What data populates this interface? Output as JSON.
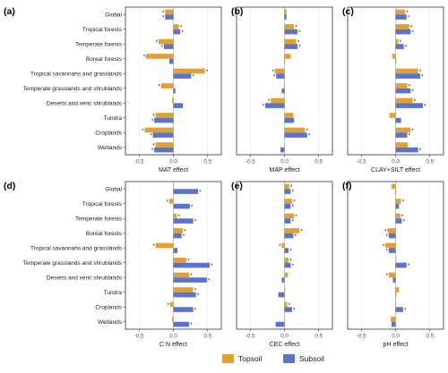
{
  "colors": {
    "topsoil": "#E3A02F",
    "subsoil": "#5B73C9",
    "panel_border": "#333333",
    "grid": "#E6E6E6",
    "zero_line": "#B3B3B3"
  },
  "legend": {
    "topsoil": "Topsoil",
    "subsoil": "Subsoil"
  },
  "chart_data": [
    {
      "type": "bar",
      "orientation": "horizontal",
      "panel": "(a)",
      "xlabel": "MAT effect",
      "xlim": [
        -0.7,
        0.7
      ],
      "xticks": [
        "-0.5",
        "0.0",
        "0.5"
      ],
      "categories": [
        "Global",
        "Tropical forests",
        "Temperate forests",
        "Boreal forests",
        "Tropical savannahs and grasslands",
        "Temperate grasslands and shrublands",
        "Deserts and xeric shrublands",
        "Tundra",
        "Croplands",
        "Wetlands"
      ],
      "series": [
        {
          "name": "Topsoil",
          "values": [
            -0.12,
            0.08,
            -0.22,
            -0.4,
            0.46,
            -0.18,
            -0.02,
            -0.26,
            -0.42,
            -0.26
          ],
          "significant": [
            true,
            true,
            true,
            true,
            true,
            true,
            false,
            true,
            true,
            true
          ]
        },
        {
          "name": "Subsoil",
          "values": [
            -0.12,
            0.1,
            -0.14,
            -0.06,
            0.26,
            0.03,
            0.14,
            -0.28,
            -0.3,
            -0.28
          ],
          "significant": [
            true,
            true,
            true,
            false,
            true,
            false,
            false,
            true,
            true,
            true
          ]
        }
      ]
    },
    {
      "type": "bar",
      "orientation": "horizontal",
      "panel": "(b)",
      "xlabel": "MAP effect",
      "xlim": [
        -0.7,
        0.7
      ],
      "xticks": [
        "-0.5",
        "0.0",
        "0.5"
      ],
      "categories": [
        "Global",
        "Tropical forests",
        "Temperate forests",
        "Boreal forests",
        "Tropical savannahs and grasslands",
        "Temperate grasslands and shrublands",
        "Deserts and xeric shrublands",
        "Tundra",
        "Croplands",
        "Wetlands"
      ],
      "series": [
        {
          "name": "Topsoil",
          "values": [
            0.03,
            0.14,
            0.17,
            0.09,
            -0.14,
            -0.01,
            -0.2,
            0.13,
            0.3,
            0.0
          ],
          "significant": [
            false,
            true,
            true,
            false,
            true,
            false,
            true,
            false,
            true,
            false
          ]
        },
        {
          "name": "Subsoil",
          "values": [
            0.03,
            0.19,
            0.19,
            0.0,
            -0.12,
            -0.04,
            -0.28,
            0.14,
            0.33,
            -0.06
          ],
          "significant": [
            false,
            true,
            true,
            false,
            true,
            false,
            true,
            false,
            true,
            false
          ]
        }
      ]
    },
    {
      "type": "bar",
      "orientation": "horizontal",
      "panel": "(c)",
      "xlabel": "CLAY+SILT effect",
      "xlim": [
        -0.7,
        0.7
      ],
      "xticks": [
        "-0.5",
        "0.0",
        "0.5"
      ],
      "categories": [
        "Global",
        "Tropical forests",
        "Temperate forests",
        "Boreal forests",
        "Tropical savannahs and grasslands",
        "Temperate grasslands and shrublands",
        "Deserts and xeric shrublands",
        "Tundra",
        "Croplands",
        "Wetlands"
      ],
      "series": [
        {
          "name": "Topsoil",
          "values": [
            0.14,
            0.2,
            0.04,
            -0.05,
            0.33,
            0.17,
            0.25,
            -0.09,
            0.22,
            0.18
          ],
          "significant": [
            true,
            true,
            true,
            false,
            true,
            true,
            true,
            false,
            true,
            false
          ]
        },
        {
          "name": "Subsoil",
          "values": [
            0.16,
            0.22,
            0.12,
            0.01,
            0.36,
            0.22,
            0.4,
            0.08,
            0.17,
            0.33
          ],
          "significant": [
            true,
            true,
            true,
            false,
            true,
            true,
            true,
            false,
            true,
            true
          ]
        }
      ]
    },
    {
      "type": "bar",
      "orientation": "horizontal",
      "panel": "(d)",
      "xlabel": "C:N effect",
      "xlim": [
        -0.7,
        0.7
      ],
      "xticks": [
        "-0.5",
        "0.0",
        "0.5"
      ],
      "categories": [
        "Global",
        "Tropical forests",
        "Temperate forests",
        "Boreal forests",
        "Tropical savannahs and grasslands",
        "Temperate grasslands and shrublands",
        "Deserts and xeric shrublands",
        "Tundra",
        "Croplands",
        "Wetlands"
      ],
      "series": [
        {
          "name": "Topsoil",
          "values": [
            0.0,
            -0.06,
            0.05,
            0.14,
            -0.26,
            0.19,
            0.23,
            0.29,
            -0.05,
            -0.02
          ],
          "significant": [
            false,
            true,
            true,
            true,
            true,
            true,
            true,
            true,
            true,
            false
          ]
        },
        {
          "name": "Subsoil",
          "values": [
            0.36,
            0.24,
            0.29,
            0.12,
            0.06,
            0.53,
            0.49,
            0.33,
            0.29,
            0.23
          ],
          "significant": [
            true,
            true,
            true,
            true,
            false,
            true,
            true,
            true,
            true,
            true
          ]
        }
      ]
    },
    {
      "type": "bar",
      "orientation": "horizontal",
      "panel": "(e)",
      "xlabel": "CEC effect",
      "xlim": [
        -0.7,
        0.7
      ],
      "xticks": [
        "-0.5",
        "0.0",
        "0.5"
      ],
      "categories": [
        "Global",
        "Tropical forests",
        "Temperate forests",
        "Boreal forests",
        "Tropical savannahs and grasslands",
        "Temperate grasslands and shrublands",
        "Deserts and xeric shrublands",
        "Tundra",
        "Croplands",
        "Wetlands"
      ],
      "series": [
        {
          "name": "Topsoil",
          "values": [
            0.07,
            0.11,
            0.14,
            0.22,
            -0.04,
            0.06,
            0.05,
            0.01,
            0.04,
            0.01
          ],
          "significant": [
            true,
            true,
            true,
            true,
            true,
            true,
            false,
            false,
            true,
            false
          ]
        },
        {
          "name": "Subsoil",
          "values": [
            0.09,
            0.09,
            0.09,
            0.13,
            0.06,
            0.09,
            -0.04,
            -0.09,
            0.11,
            -0.13
          ],
          "significant": [
            true,
            true,
            true,
            true,
            true,
            true,
            false,
            false,
            true,
            false
          ]
        }
      ]
    },
    {
      "type": "bar",
      "orientation": "horizontal",
      "panel": "(f)",
      "xlabel": "pH effect",
      "xlim": [
        -0.7,
        0.7
      ],
      "xticks": [
        "-0.5",
        "0.0",
        "0.5"
      ],
      "categories": [
        "Global",
        "Tropical forests",
        "Temperate forests",
        "Boreal forests",
        "Tropical savannahs and grasslands",
        "Temperate grasslands and shrublands",
        "Deserts and xeric shrublands",
        "Tundra",
        "Croplands",
        "Wetlands"
      ],
      "series": [
        {
          "name": "Topsoil",
          "values": [
            -0.06,
            0.08,
            0.07,
            -0.12,
            -0.15,
            0.01,
            -0.1,
            0.05,
            -0.01,
            -0.07
          ],
          "significant": [
            false,
            true,
            true,
            true,
            true,
            false,
            true,
            false,
            false,
            false
          ]
        },
        {
          "name": "Subsoil",
          "values": [
            0.0,
            0.05,
            0.09,
            -0.1,
            -0.1,
            0.16,
            -0.04,
            0.01,
            0.11,
            -0.06
          ],
          "significant": [
            false,
            false,
            true,
            true,
            true,
            true,
            false,
            false,
            true,
            false
          ]
        }
      ]
    }
  ]
}
